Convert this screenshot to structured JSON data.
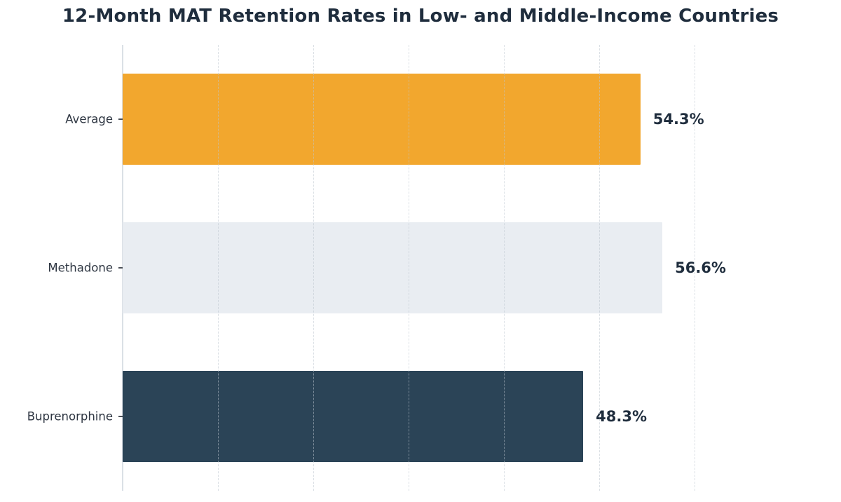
{
  "title": "12-Month MAT Retention Rates in Low- and Middle-Income Countries",
  "chart_data": {
    "type": "bar",
    "orientation": "horizontal",
    "title": "12-Month MAT Retention Rates in Low- and Middle-Income Countries",
    "xlabel": "",
    "ylabel": "",
    "categories": [
      "Average",
      "Methadone",
      "Buprenorphine"
    ],
    "values": [
      54.3,
      56.6,
      48.3
    ],
    "value_labels": [
      "54.3%",
      "56.6%",
      "48.3%"
    ],
    "bar_colors": [
      "#f2a72e",
      "#e9edf2",
      "#2b4457"
    ],
    "xlim": [
      0,
      74.6
    ],
    "gridlines": [
      10,
      20,
      30,
      40,
      50,
      60
    ],
    "grid": "vertical-dashed",
    "legend": "none",
    "text_color": "#1f2d3d",
    "background_color": "#ffffff"
  }
}
